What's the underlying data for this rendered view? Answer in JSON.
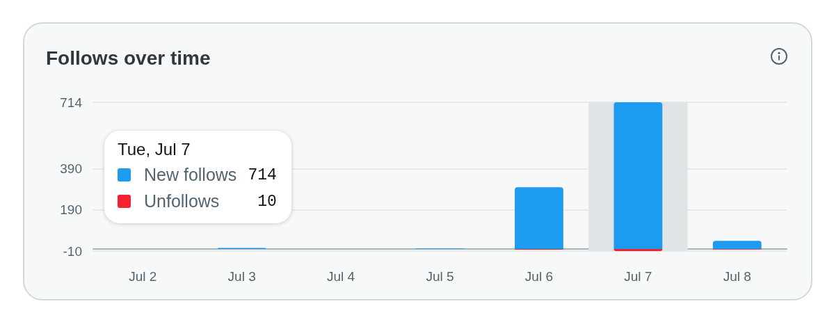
{
  "chart_data": {
    "type": "bar",
    "title": "Follows over time",
    "categories": [
      "Jul 2",
      "Jul 3",
      "Jul 4",
      "Jul 5",
      "Jul 6",
      "Jul 7",
      "Jul 8"
    ],
    "series": [
      {
        "name": "New follows",
        "color": "#1d9bf0",
        "values": [
          0,
          5,
          0,
          3,
          300,
          714,
          40
        ]
      },
      {
        "name": "Unfollows",
        "color": "#f4212e",
        "values": [
          0,
          0,
          0,
          0,
          -3,
          -10,
          -2
        ]
      }
    ],
    "stacked": true,
    "ylim": [
      -10,
      714
    ],
    "yticks": [
      -10,
      190,
      390,
      714
    ],
    "grid": "y",
    "legend": "left",
    "legend_title": "Tue, Jul 7",
    "annotations": [
      "714",
      "10"
    ],
    "bands": [
      {
        "axis": "x",
        "from": "Jul 7",
        "to": "Jul 7",
        "color": "#e1e4e6"
      }
    ]
  }
}
